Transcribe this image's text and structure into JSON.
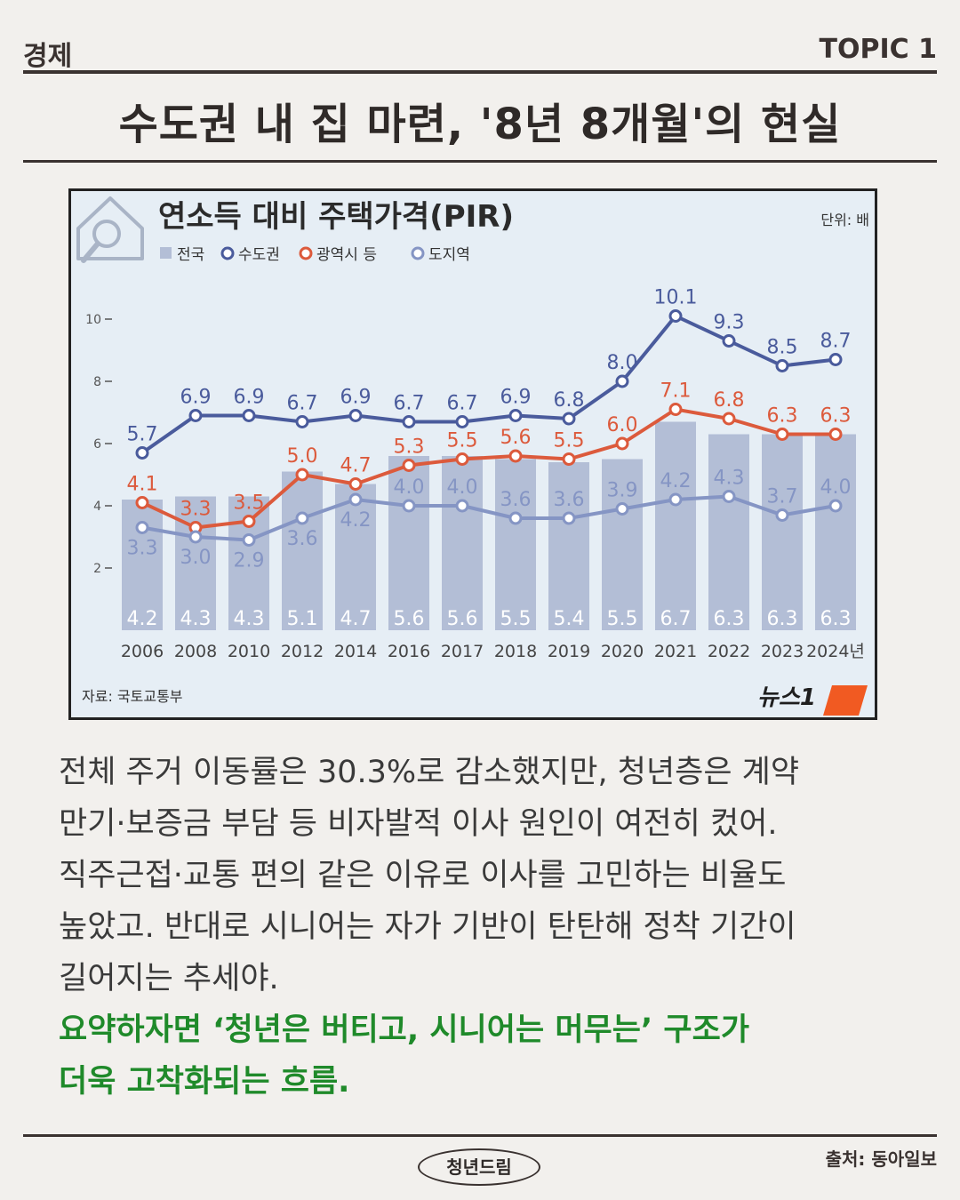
{
  "header": {
    "category": "경제",
    "topic": "TOPIC 1",
    "headline": "수도권 내 집 마련, '8년 8개월'의 현실"
  },
  "chart_data": {
    "type": "bar",
    "title": "연소득 대비 주택가격(PIR)",
    "unit": "단위: 배",
    "source": "자료: 국토교통부",
    "logo": "뉴스1",
    "categories": [
      "2006",
      "2008",
      "2010",
      "2012",
      "2014",
      "2016",
      "2017",
      "2018",
      "2019",
      "2020",
      "2021",
      "2022",
      "2023",
      "2024년"
    ],
    "ylim": [
      0,
      11.5
    ],
    "yticks": [
      2,
      4,
      6,
      8,
      10
    ],
    "legend": [
      "전국",
      "수도권",
      "광역시 등",
      "도지역"
    ],
    "series": [
      {
        "name": "전국",
        "kind": "bar",
        "color": "#b3bed6",
        "values": [
          4.2,
          4.3,
          4.3,
          5.1,
          4.7,
          5.6,
          5.6,
          5.5,
          5.4,
          5.5,
          6.7,
          6.3,
          6.3,
          6.3
        ]
      },
      {
        "name": "수도권",
        "kind": "line",
        "color": "#4a5b9c",
        "values": [
          5.7,
          6.9,
          6.9,
          6.7,
          6.9,
          6.7,
          6.7,
          6.9,
          6.8,
          8.0,
          10.1,
          9.3,
          8.5,
          8.7
        ]
      },
      {
        "name": "광역시 등",
        "kind": "line",
        "color": "#dc5a3c",
        "values": [
          4.1,
          3.3,
          3.5,
          5.0,
          4.7,
          5.3,
          5.5,
          5.6,
          5.5,
          6.0,
          7.1,
          6.8,
          6.3,
          6.3
        ]
      },
      {
        "name": "도지역",
        "kind": "line",
        "color": "#8595c4",
        "values": [
          3.3,
          3.0,
          2.9,
          3.6,
          4.2,
          4.0,
          4.0,
          3.6,
          3.6,
          3.9,
          4.2,
          4.3,
          3.7,
          4.0
        ]
      }
    ]
  },
  "body": {
    "lines": [
      "전체 주거 이동률은 30.3%로 감소했지만, 청년층은 계약",
      "만기·보증금 부담 등 비자발적 이사 원인이 여전히 컸어.",
      "직주근접·교통 편의 같은 이유로 이사를 고민하는 비율도",
      "높았고. 반대로 시니어는 자가 기반이 탄탄해 정착 기간이",
      "길어지는 추세야."
    ],
    "summary": [
      "요약하자면 ‘청년은 버티고, 시니어는 머무는’ 구조가",
      "더욱 고착화되는 흐름."
    ]
  },
  "footer": {
    "brand": "청년드림",
    "credit": "출처: 동아일보"
  }
}
